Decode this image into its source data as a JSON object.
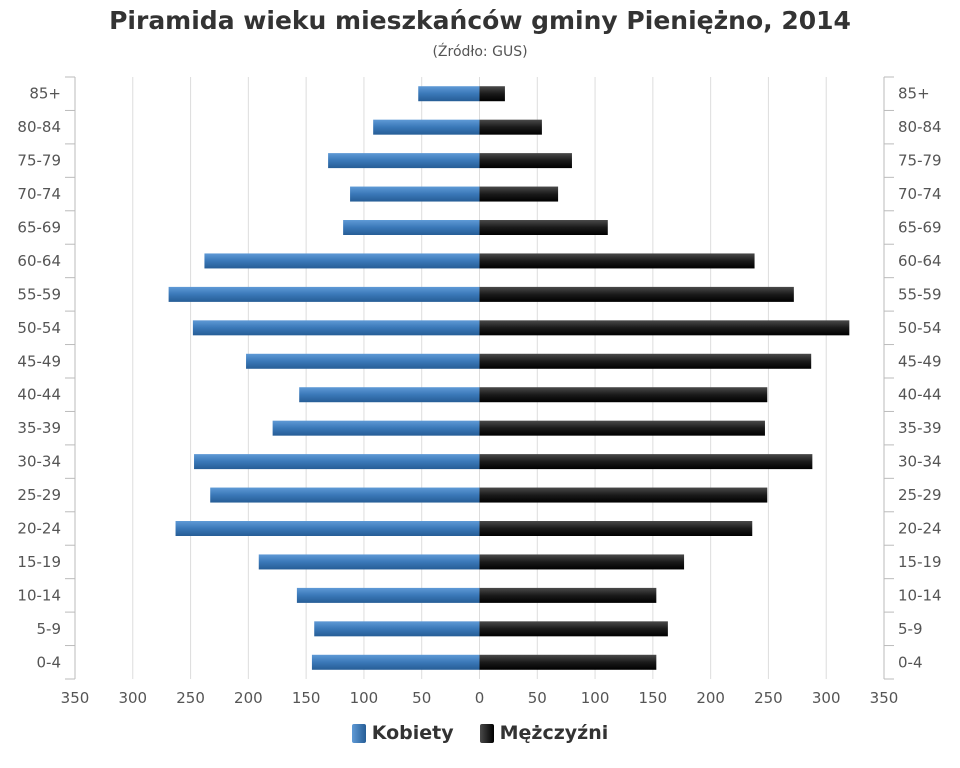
{
  "colors": {
    "female": "#3a78b8",
    "male": "#1a1a1a",
    "grid": "#dddddd",
    "axis": "#bbbbbb"
  },
  "chart_data": {
    "type": "bar",
    "orientation": "horizontal",
    "title": "Piramida wieku mieszkańców gminy Pieniężno, 2014",
    "subtitle": "(Źródło: GUS)",
    "categories": [
      "85+",
      "80-84",
      "75-79",
      "70-74",
      "65-69",
      "60-64",
      "55-59",
      "50-54",
      "45-49",
      "40-44",
      "35-39",
      "30-34",
      "25-29",
      "20-24",
      "15-19",
      "10-14",
      "5-9",
      "0-4"
    ],
    "series": [
      {
        "name": "Kobiety",
        "values": [
          53,
          92,
          131,
          112,
          118,
          238,
          269,
          248,
          202,
          156,
          179,
          247,
          233,
          263,
          191,
          158,
          143,
          145
        ]
      },
      {
        "name": "Mężczyźni",
        "values": [
          22,
          54,
          80,
          68,
          111,
          238,
          272,
          320,
          287,
          249,
          247,
          288,
          249,
          236,
          177,
          153,
          163,
          153
        ]
      }
    ],
    "xlim": [
      -350,
      350
    ],
    "xticks": [
      350,
      300,
      250,
      200,
      150,
      100,
      50,
      0,
      50,
      100,
      150,
      200,
      250,
      300,
      350
    ],
    "grid": true,
    "legend_position": "bottom"
  }
}
